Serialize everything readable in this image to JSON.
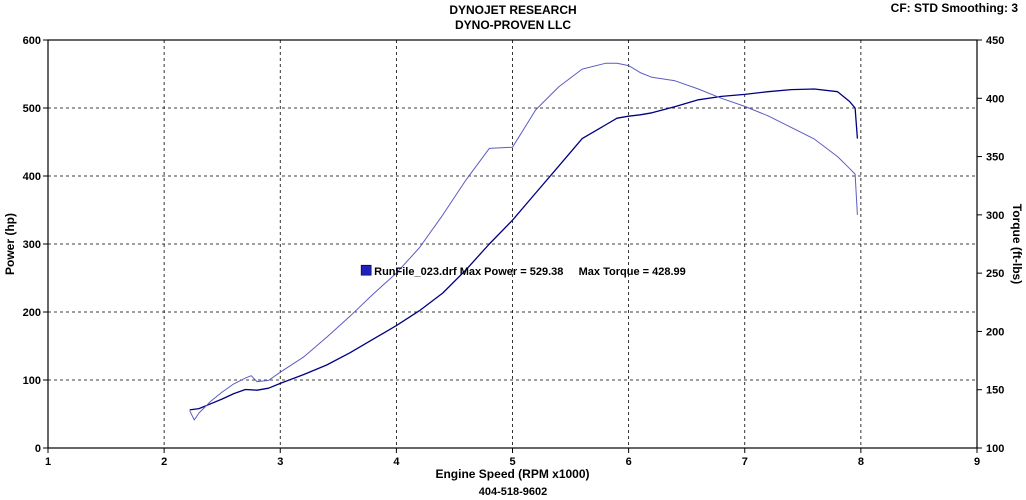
{
  "header": {
    "title_line1": "DYNOJET RESEARCH",
    "title_line2": "DYNO-PROVEN LLC",
    "info": "CF: STD  Smoothing: 3"
  },
  "footer": {
    "phone": "404-518-9602"
  },
  "chart_data": {
    "type": "line",
    "xlabel": "Engine Speed (RPM x1000)",
    "ylabel_left": "Power (hp)",
    "ylabel_right": "Torque (ft-lbs)",
    "xlim": [
      1,
      9
    ],
    "ylim_left": [
      0,
      600
    ],
    "ylim_right": [
      100,
      450
    ],
    "x_ticks": [
      1,
      2,
      3,
      4,
      5,
      6,
      7,
      8,
      9
    ],
    "y_ticks_left": [
      0,
      100,
      200,
      300,
      400,
      500,
      600
    ],
    "y_ticks_right": [
      100,
      150,
      200,
      250,
      300,
      350,
      400,
      450
    ],
    "grid": true,
    "annotation": {
      "file": "RunFile_023.drf",
      "max_power_label": "Max Power = 529.38",
      "max_torque_label": "Max Torque = 428.99",
      "swatch_color": "#2020c0",
      "x": 3.8,
      "y": 260
    },
    "series": [
      {
        "axis": "left",
        "color": "#000080",
        "x": [
          2.22,
          2.3,
          2.4,
          2.5,
          2.6,
          2.7,
          2.8,
          2.9,
          3.0,
          3.2,
          3.4,
          3.6,
          3.8,
          4.0,
          4.2,
          4.4,
          4.6,
          4.8,
          5.0,
          5.2,
          5.4,
          5.6,
          5.8,
          5.9,
          6.0,
          6.1,
          6.2,
          6.4,
          6.6,
          6.8,
          7.0,
          7.2,
          7.4,
          7.6,
          7.8,
          7.9,
          7.95,
          7.97
        ],
        "y": [
          56,
          58,
          65,
          72,
          80,
          86,
          85,
          88,
          95,
          108,
          122,
          140,
          160,
          180,
          202,
          228,
          262,
          300,
          335,
          375,
          415,
          455,
          475,
          485,
          488,
          490,
          493,
          502,
          512,
          517,
          520,
          524,
          527,
          528,
          524,
          510,
          500,
          455
        ]
      },
      {
        "axis": "right",
        "color": "#5c5cc4",
        "x": [
          2.22,
          2.26,
          2.3,
          2.4,
          2.5,
          2.6,
          2.7,
          2.75,
          2.8,
          2.9,
          3.0,
          3.2,
          3.4,
          3.6,
          3.8,
          4.0,
          4.2,
          4.4,
          4.6,
          4.8,
          5.0,
          5.2,
          5.4,
          5.6,
          5.8,
          5.9,
          6.0,
          6.1,
          6.2,
          6.4,
          6.6,
          6.8,
          7.0,
          7.2,
          7.4,
          7.6,
          7.8,
          7.9,
          7.95,
          7.97
        ],
        "y": [
          132,
          124,
          130,
          140,
          148,
          155,
          160,
          162,
          157,
          158,
          165,
          178,
          195,
          213,
          232,
          250,
          272,
          300,
          330,
          357,
          358,
          390,
          410,
          425,
          430,
          430,
          428,
          422,
          418,
          415,
          408,
          400,
          393,
          385,
          375,
          365,
          350,
          340,
          335,
          300
        ]
      }
    ]
  }
}
